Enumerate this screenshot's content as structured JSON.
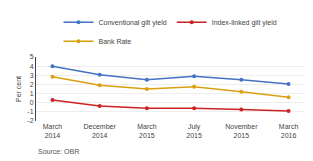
{
  "chart_data": {
    "type": "line",
    "categories": [
      "March\n2014",
      "December\n2014",
      "March\n2015",
      "July\n2015",
      "November\n2015",
      "March\n2016"
    ],
    "series": [
      {
        "name": "Conventional gilt yield",
        "color": "#4472c4",
        "values": [
          4.0,
          3.05,
          2.5,
          2.9,
          2.5,
          2.05
        ]
      },
      {
        "name": "Index-linked gilt yield",
        "color": "#cc2222",
        "values": [
          0.3,
          -0.35,
          -0.6,
          -0.6,
          -0.75,
          -0.9
        ]
      },
      {
        "name": "Bank Rate",
        "color": "#daa010",
        "values": [
          2.85,
          1.9,
          1.5,
          1.75,
          1.2,
          0.6
        ]
      }
    ],
    "y_label": "Per cent",
    "ylim": [
      -2,
      5
    ],
    "yticks": [
      -2,
      -1,
      0,
      1,
      2,
      3,
      4,
      5
    ],
    "grid": true,
    "legend": "top",
    "marker": "circle",
    "annotations": [
      "Source: OBR"
    ]
  }
}
